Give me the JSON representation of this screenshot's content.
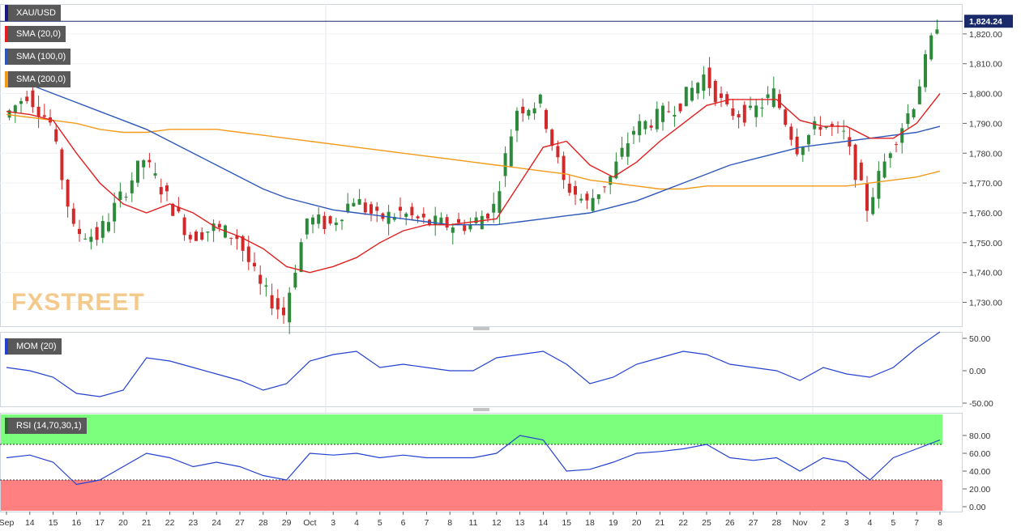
{
  "symbol": "XAU/USD",
  "last_price_label": "1,824.24",
  "watermark": "FXSTREET",
  "indicators": {
    "sma20": {
      "label": "SMA (20,0)",
      "color": "#e02020"
    },
    "sma100": {
      "label": "SMA (100,0)",
      "color": "#2e58b8"
    },
    "sma200": {
      "label": "SMA (200,0)",
      "color": "#f29a1a"
    },
    "mom": {
      "label": "MOM (20)",
      "color": "#2442d0"
    },
    "rsi": {
      "label": "RSI (14,70,30,1)",
      "color": "#2442d0"
    }
  },
  "colors": {
    "up": "#2c8a3a",
    "down": "#d12a2a",
    "overbought_zone": "#7cff7c",
    "oversold_zone": "#ff8080"
  },
  "chart_data": [
    {
      "type": "candlestick",
      "title": "XAU/USD",
      "ylim": [
        1722,
        1830
      ],
      "y_ticks": [
        "1,730.00",
        "1,740.00",
        "1,750.00",
        "1,760.00",
        "1,770.00",
        "1,780.00",
        "1,790.00",
        "1,800.00",
        "1,810.00",
        "1,820.00"
      ],
      "x_ticks": [
        "Sep",
        "14",
        "15",
        "16",
        "17",
        "20",
        "21",
        "22",
        "23",
        "24",
        "27",
        "28",
        "29",
        "Oct",
        "3",
        "4",
        "5",
        "6",
        "7",
        "8",
        "11",
        "12",
        "13",
        "14",
        "15",
        "18",
        "19",
        "20",
        "21",
        "22",
        "25",
        "26",
        "27",
        "28",
        "Nov",
        "2",
        "3",
        "4",
        "5",
        "7",
        "8"
      ],
      "last_value": 1824.24,
      "series_close_anchors": {
        "x": [
          "Sep",
          "14",
          "15",
          "16",
          "17",
          "20",
          "21",
          "22",
          "23",
          "24",
          "27",
          "28",
          "29",
          "Oct",
          "3",
          "4",
          "5",
          "6",
          "7",
          "8",
          "11",
          "12",
          "13",
          "14",
          "15",
          "18",
          "19",
          "20",
          "21",
          "22",
          "25",
          "26",
          "27",
          "28",
          "Nov",
          "2",
          "3",
          "4",
          "5",
          "7",
          "8"
        ],
        "close": [
          1792,
          1800,
          1790,
          1754,
          1752,
          1765,
          1778,
          1765,
          1752,
          1755,
          1752,
          1735,
          1726,
          1758,
          1756,
          1765,
          1758,
          1760,
          1757,
          1756,
          1756,
          1762,
          1795,
          1797,
          1770,
          1763,
          1772,
          1788,
          1792,
          1797,
          1806,
          1794,
          1793,
          1800,
          1782,
          1790,
          1786,
          1762,
          1782,
          1797,
          1824
        ]
      },
      "sma20": [
        1794,
        1793,
        1791,
        1780,
        1770,
        1763,
        1760,
        1763,
        1760,
        1755,
        1752,
        1748,
        1742,
        1740,
        1742,
        1745,
        1750,
        1754,
        1756,
        1756,
        1757,
        1758,
        1770,
        1782,
        1784,
        1776,
        1772,
        1777,
        1784,
        1790,
        1796,
        1798,
        1798,
        1798,
        1791,
        1789,
        1789,
        1785,
        1785,
        1790,
        1800
      ],
      "sma100": [
        1806,
        1803,
        1800,
        1797,
        1794,
        1791,
        1788,
        1784,
        1780,
        1776,
        1772,
        1768,
        1765,
        1763,
        1761,
        1760,
        1759,
        1758,
        1757,
        1756,
        1756,
        1756,
        1757,
        1758,
        1759,
        1760,
        1762,
        1764,
        1767,
        1770,
        1773,
        1776,
        1778,
        1780,
        1782,
        1783,
        1784,
        1785,
        1786,
        1787,
        1789
      ],
      "sma200": [
        1793,
        1792,
        1791,
        1790,
        1788,
        1787,
        1787,
        1788,
        1788,
        1788,
        1787,
        1786,
        1785,
        1784,
        1783,
        1782,
        1781,
        1780,
        1779,
        1778,
        1777,
        1776,
        1775,
        1774,
        1773,
        1771,
        1770,
        1769,
        1768,
        1768,
        1769,
        1769,
        1769,
        1769,
        1769,
        1769,
        1769,
        1770,
        1771,
        1772,
        1774
      ]
    },
    {
      "type": "line",
      "title": "MOM (20)",
      "ylim": [
        -55,
        60
      ],
      "y_ticks": [
        "-50.00",
        "0.00",
        "50.00"
      ],
      "values": [
        5,
        0,
        -10,
        -35,
        -40,
        -30,
        20,
        15,
        5,
        -5,
        -15,
        -30,
        -20,
        15,
        25,
        30,
        5,
        10,
        5,
        0,
        0,
        20,
        25,
        30,
        10,
        -20,
        -10,
        10,
        20,
        30,
        25,
        10,
        5,
        0,
        -15,
        5,
        -5,
        -10,
        5,
        35,
        60
      ]
    },
    {
      "type": "line",
      "title": "RSI (14,70,30,1)",
      "ylim": [
        0,
        100
      ],
      "y_ticks": [
        "0.00",
        "20.00",
        "40.00",
        "60.00",
        "80.00"
      ],
      "overbought": 70,
      "oversold": 30,
      "values": [
        55,
        58,
        50,
        25,
        30,
        45,
        60,
        55,
        45,
        50,
        45,
        35,
        30,
        60,
        58,
        60,
        55,
        58,
        55,
        55,
        55,
        60,
        80,
        75,
        40,
        42,
        50,
        60,
        62,
        65,
        70,
        55,
        52,
        55,
        40,
        55,
        50,
        30,
        55,
        65,
        75
      ]
    }
  ]
}
